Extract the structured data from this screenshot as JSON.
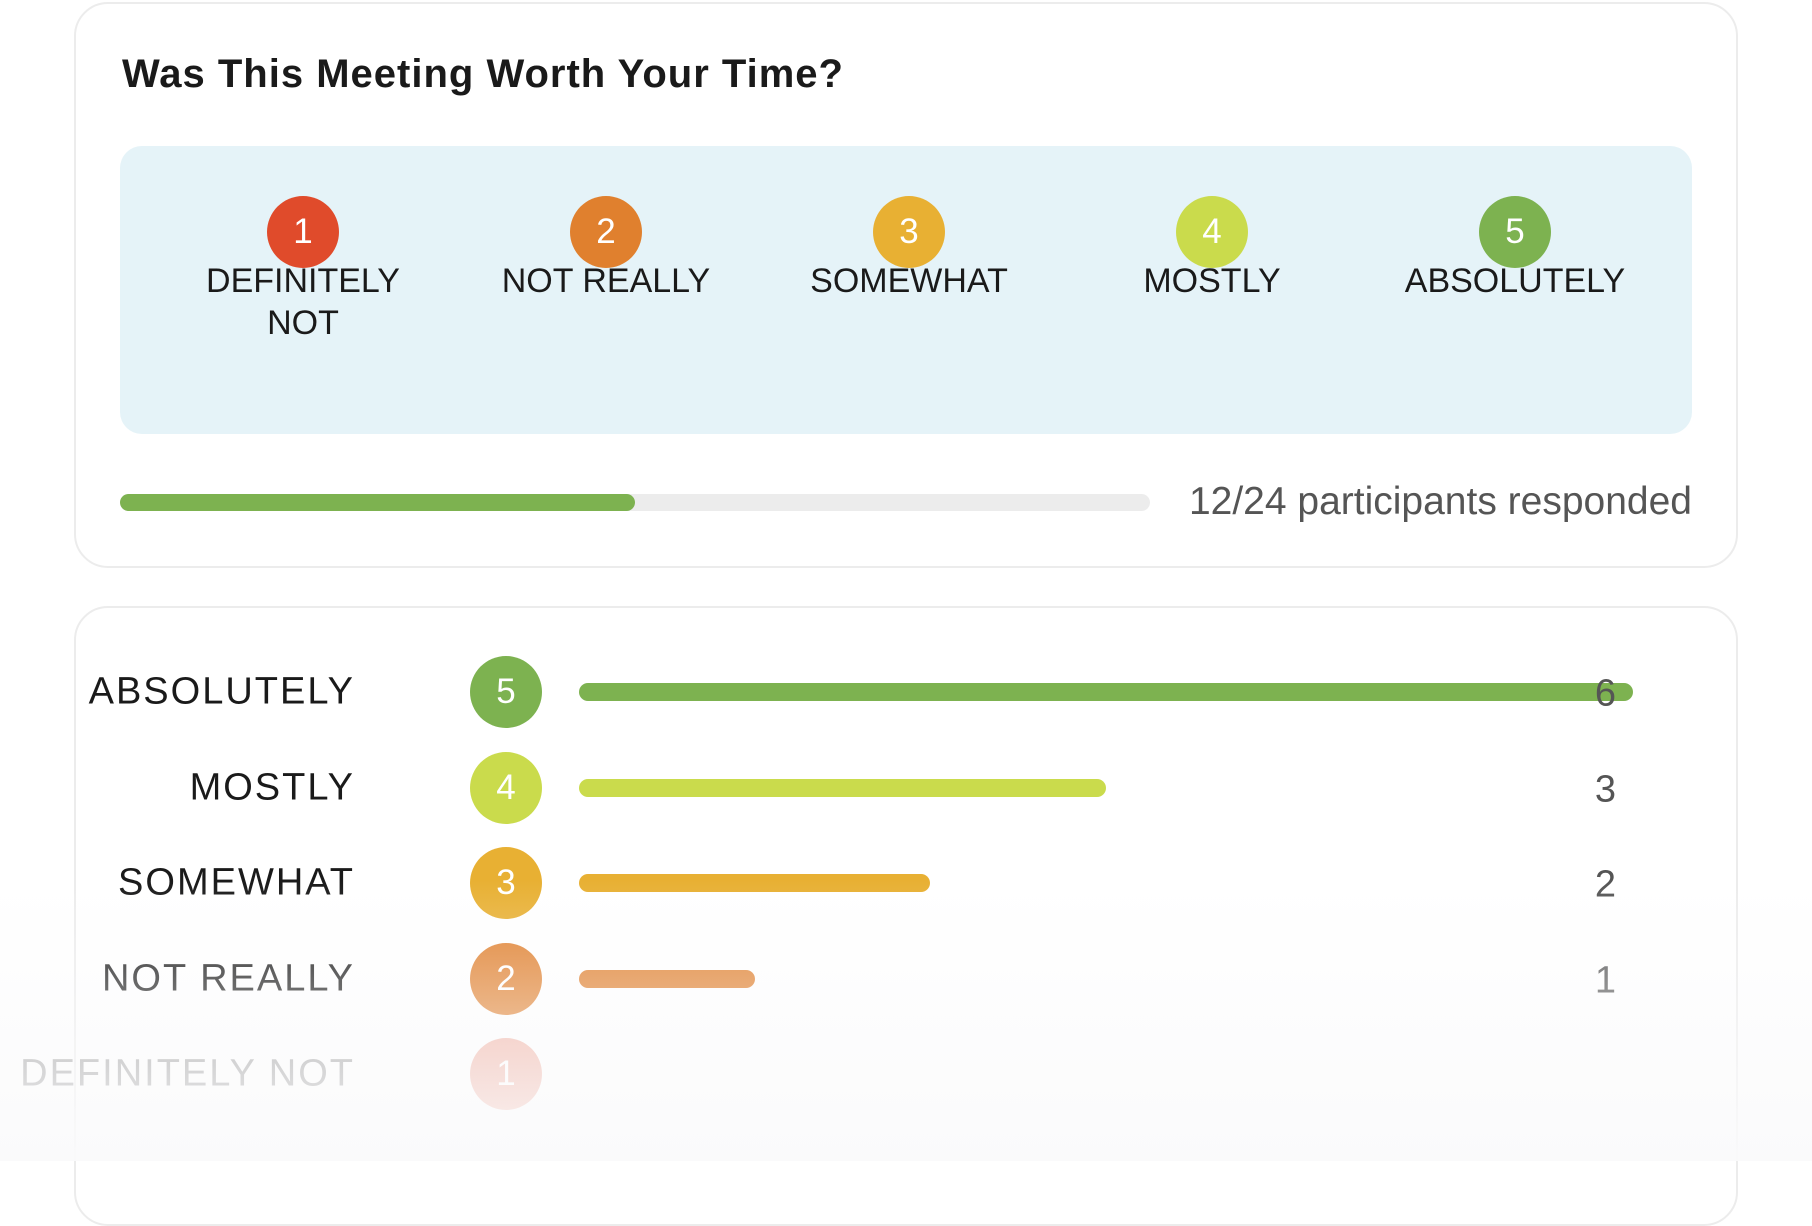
{
  "poll": {
    "title": "Was This Meeting Worth Your Time?",
    "options": [
      {
        "number": "1",
        "label": "DEFINITELY NOT",
        "color": "#e04b2b"
      },
      {
        "number": "2",
        "label": "NOT REALLY",
        "color": "#e0802e"
      },
      {
        "number": "3",
        "label": "SOMEWHAT",
        "color": "#e8b033"
      },
      {
        "number": "4",
        "label": "MOSTLY",
        "color": "#cadb4c"
      },
      {
        "number": "5",
        "label": "ABSOLUTELY",
        "color": "#7db250"
      }
    ],
    "progress": {
      "responded": 12,
      "total": 24,
      "text": "12/24 participants responded",
      "color": "#7db250"
    }
  },
  "results": {
    "rows": [
      {
        "label": "ABSOLUTELY",
        "number": "5",
        "count": 6,
        "color": "#7db250"
      },
      {
        "label": "MOSTLY",
        "number": "4",
        "count": 3,
        "color": "#cadb4c"
      },
      {
        "label": "SOMEWHAT",
        "number": "3",
        "count": 2,
        "color": "#e8b033"
      },
      {
        "label": "NOT REALLY",
        "number": "2",
        "count": 1,
        "color": "#e0802e"
      },
      {
        "label": "DEFINITELY NOT",
        "number": "1",
        "color": "#e04b2b"
      }
    ]
  }
}
